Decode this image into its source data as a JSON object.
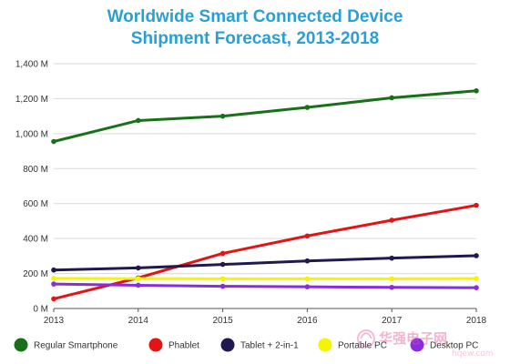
{
  "colors": {
    "title": "#2a9fd6",
    "grid": "#d9d9d9",
    "axis": "#555555"
  },
  "chart_data": {
    "type": "line",
    "title": "Worldwide Smart Connected Device Shipment Forecast, 2013-2018",
    "title_lines": [
      "Worldwide Smart Connected Device",
      "Shipment Forecast, 2013-2018"
    ],
    "xlabel": "",
    "ylabel": "",
    "x": [
      2013,
      2014,
      2015,
      2016,
      2017,
      2018
    ],
    "x_ticks": [
      "2013",
      "2014",
      "2015",
      "2016",
      "2017",
      "2018"
    ],
    "ylim": [
      0,
      1400
    ],
    "y_ticks": [
      0,
      200,
      400,
      600,
      800,
      1000,
      1200,
      1400
    ],
    "y_tick_labels": [
      "0 M",
      "200 M",
      "400 M",
      "600 M",
      "800 M",
      "1,000 M",
      "1,200 M",
      "1,400 M"
    ],
    "grid": true,
    "legend_position": "bottom",
    "series": [
      {
        "name": "Regular Smartphone",
        "color": "#187018",
        "values": [
          955,
          1075,
          1100,
          1150,
          1205,
          1245
        ]
      },
      {
        "name": "Phablet",
        "color": "#e31414",
        "values": [
          55,
          175,
          315,
          415,
          505,
          590
        ]
      },
      {
        "name": "Tablet + 2-in-1",
        "color": "#1e1a4f",
        "values": [
          220,
          232,
          252,
          272,
          288,
          302
        ]
      },
      {
        "name": "Portable PC",
        "color": "#f5f500",
        "values": [
          172,
          171,
          170,
          170,
          170,
          171
        ]
      },
      {
        "name": "Desktop PC",
        "color": "#8a2be2",
        "values": [
          140,
          133,
          127,
          124,
          121,
          119
        ]
      }
    ]
  },
  "watermark": {
    "text": "华强电子网",
    "url": "hqew.com"
  }
}
